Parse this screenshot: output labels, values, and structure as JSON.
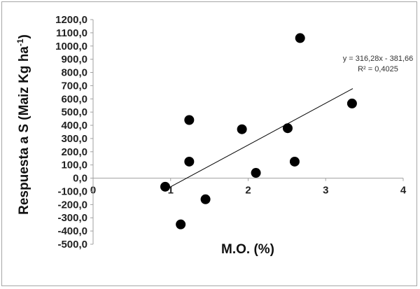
{
  "chart_data": {
    "type": "scatter",
    "xlabel": "M.O. (%)",
    "ylabel_main": "Respuesta a S (Maiz Kg ha",
    "ylabel_sup": "-1",
    "ylabel_close": ")",
    "xlim": [
      0,
      4
    ],
    "ylim": [
      -500,
      1200
    ],
    "x_ticks": [
      0,
      1,
      2,
      3,
      4
    ],
    "x_tick_labels": [
      "0",
      "1",
      "2",
      "3",
      "4"
    ],
    "y_ticks": [
      1200,
      1100,
      1000,
      900,
      800,
      700,
      600,
      500,
      400,
      300,
      200,
      100,
      0,
      -100,
      -200,
      -300,
      -400,
      -500
    ],
    "y_tick_labels": [
      "1200,0",
      "1100,0",
      "1000,0",
      "900,0",
      "800,0",
      "700,0",
      "600,0",
      "500,0",
      "400,0",
      "300,0",
      "200,0",
      "100,0",
      "0,0",
      "-100,0",
      "-200,0",
      "-300,0",
      "-400,0",
      "-500,0"
    ],
    "points": [
      {
        "x": 0.93,
        "y": -65
      },
      {
        "x": 1.13,
        "y": -350
      },
      {
        "x": 1.24,
        "y": 440
      },
      {
        "x": 1.24,
        "y": 125
      },
      {
        "x": 1.45,
        "y": -160
      },
      {
        "x": 1.92,
        "y": 370
      },
      {
        "x": 2.1,
        "y": 40
      },
      {
        "x": 2.51,
        "y": 378
      },
      {
        "x": 2.6,
        "y": 125
      },
      {
        "x": 2.67,
        "y": 1060
      },
      {
        "x": 3.34,
        "y": 565
      }
    ],
    "trendline": {
      "slope": 316.28,
      "intercept": -381.66,
      "x_range": [
        1.0,
        3.35
      ]
    },
    "equation_text": "y = 316,28x - 381,66",
    "r2_text": "R² = 0,4025",
    "grid": false,
    "legend": "none",
    "marker_color": "#000000",
    "line_color": "#000000"
  }
}
